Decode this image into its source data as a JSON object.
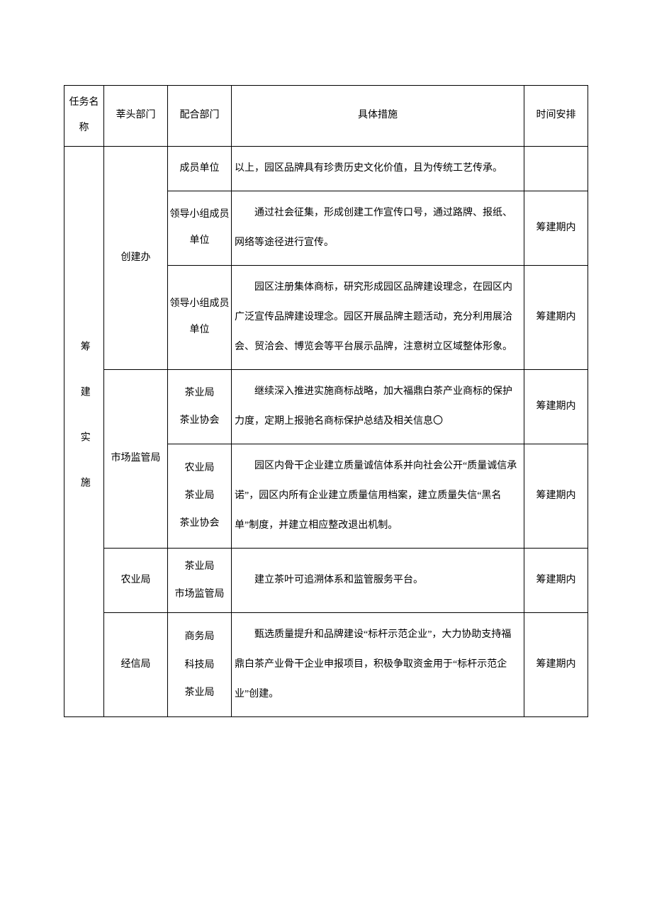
{
  "header": {
    "task_name": "任务名称",
    "lead_dept": "莘头部门",
    "support_dept": "配合部门",
    "measure": "具体措施",
    "schedule": "时间安排"
  },
  "task_label": "筹建实施",
  "rows": [
    {
      "lead": "创建办",
      "lead_rowspan": 3,
      "support": "成员单位",
      "measure": "以上，园区品牌具有珍贵历史文化价值，且为传统工艺传承。",
      "schedule": "",
      "noindent": true
    },
    {
      "support": "领导小组成员单位",
      "measure": "通过社会征集，形成创建工作宣传口号，通过路牌、报纸、网络等途径进行宣传。",
      "schedule": "筹建期内"
    },
    {
      "support": "领导小组成员单位",
      "measure": "园区注册集体商标，研究形成园区品牌建设理念，在园区内广泛宣传品牌建设理念。园区开展品牌主题活动，充分利用展洽会、贸洽会、博览会等平台展示品牌，注意树立区域整体形象。",
      "schedule": "筹建期内"
    },
    {
      "lead": "市场监管局",
      "lead_rowspan": 2,
      "support": "茶业局\n茶业协会",
      "measure": "继续深入推进实施商标战略，加大福鼎白茶产业商标的保护力度，定期上报驰名商标保护总结及相关信息〇",
      "schedule": "筹建期内"
    },
    {
      "support": "农业局\n茶业局\n茶业协会",
      "measure": "园区内骨干企业建立质量诚信体系并向社会公开“质量诚信承诺”，园区内所有企业建立质量信用档案，建立质量失信“黑名单”制度，并建立相应整改退出机制。",
      "schedule": "筹建期内"
    },
    {
      "lead": "农业局",
      "lead_rowspan": 1,
      "support": "茶业局\n市场监管局",
      "measure": "建立茶叶可追溯体系和监管服务平台。",
      "schedule": "筹建期内"
    },
    {
      "lead": "经信局",
      "lead_rowspan": 1,
      "support": "商务局\n科技局\n茶业局",
      "measure": "甄选质量提升和品牌建设“标杆示范企业”，大力协助支持福鼎白茶产业骨干企业申报项目，积极争取资金用于“标杆示范企业”创建。",
      "schedule": "筹建期内"
    }
  ]
}
